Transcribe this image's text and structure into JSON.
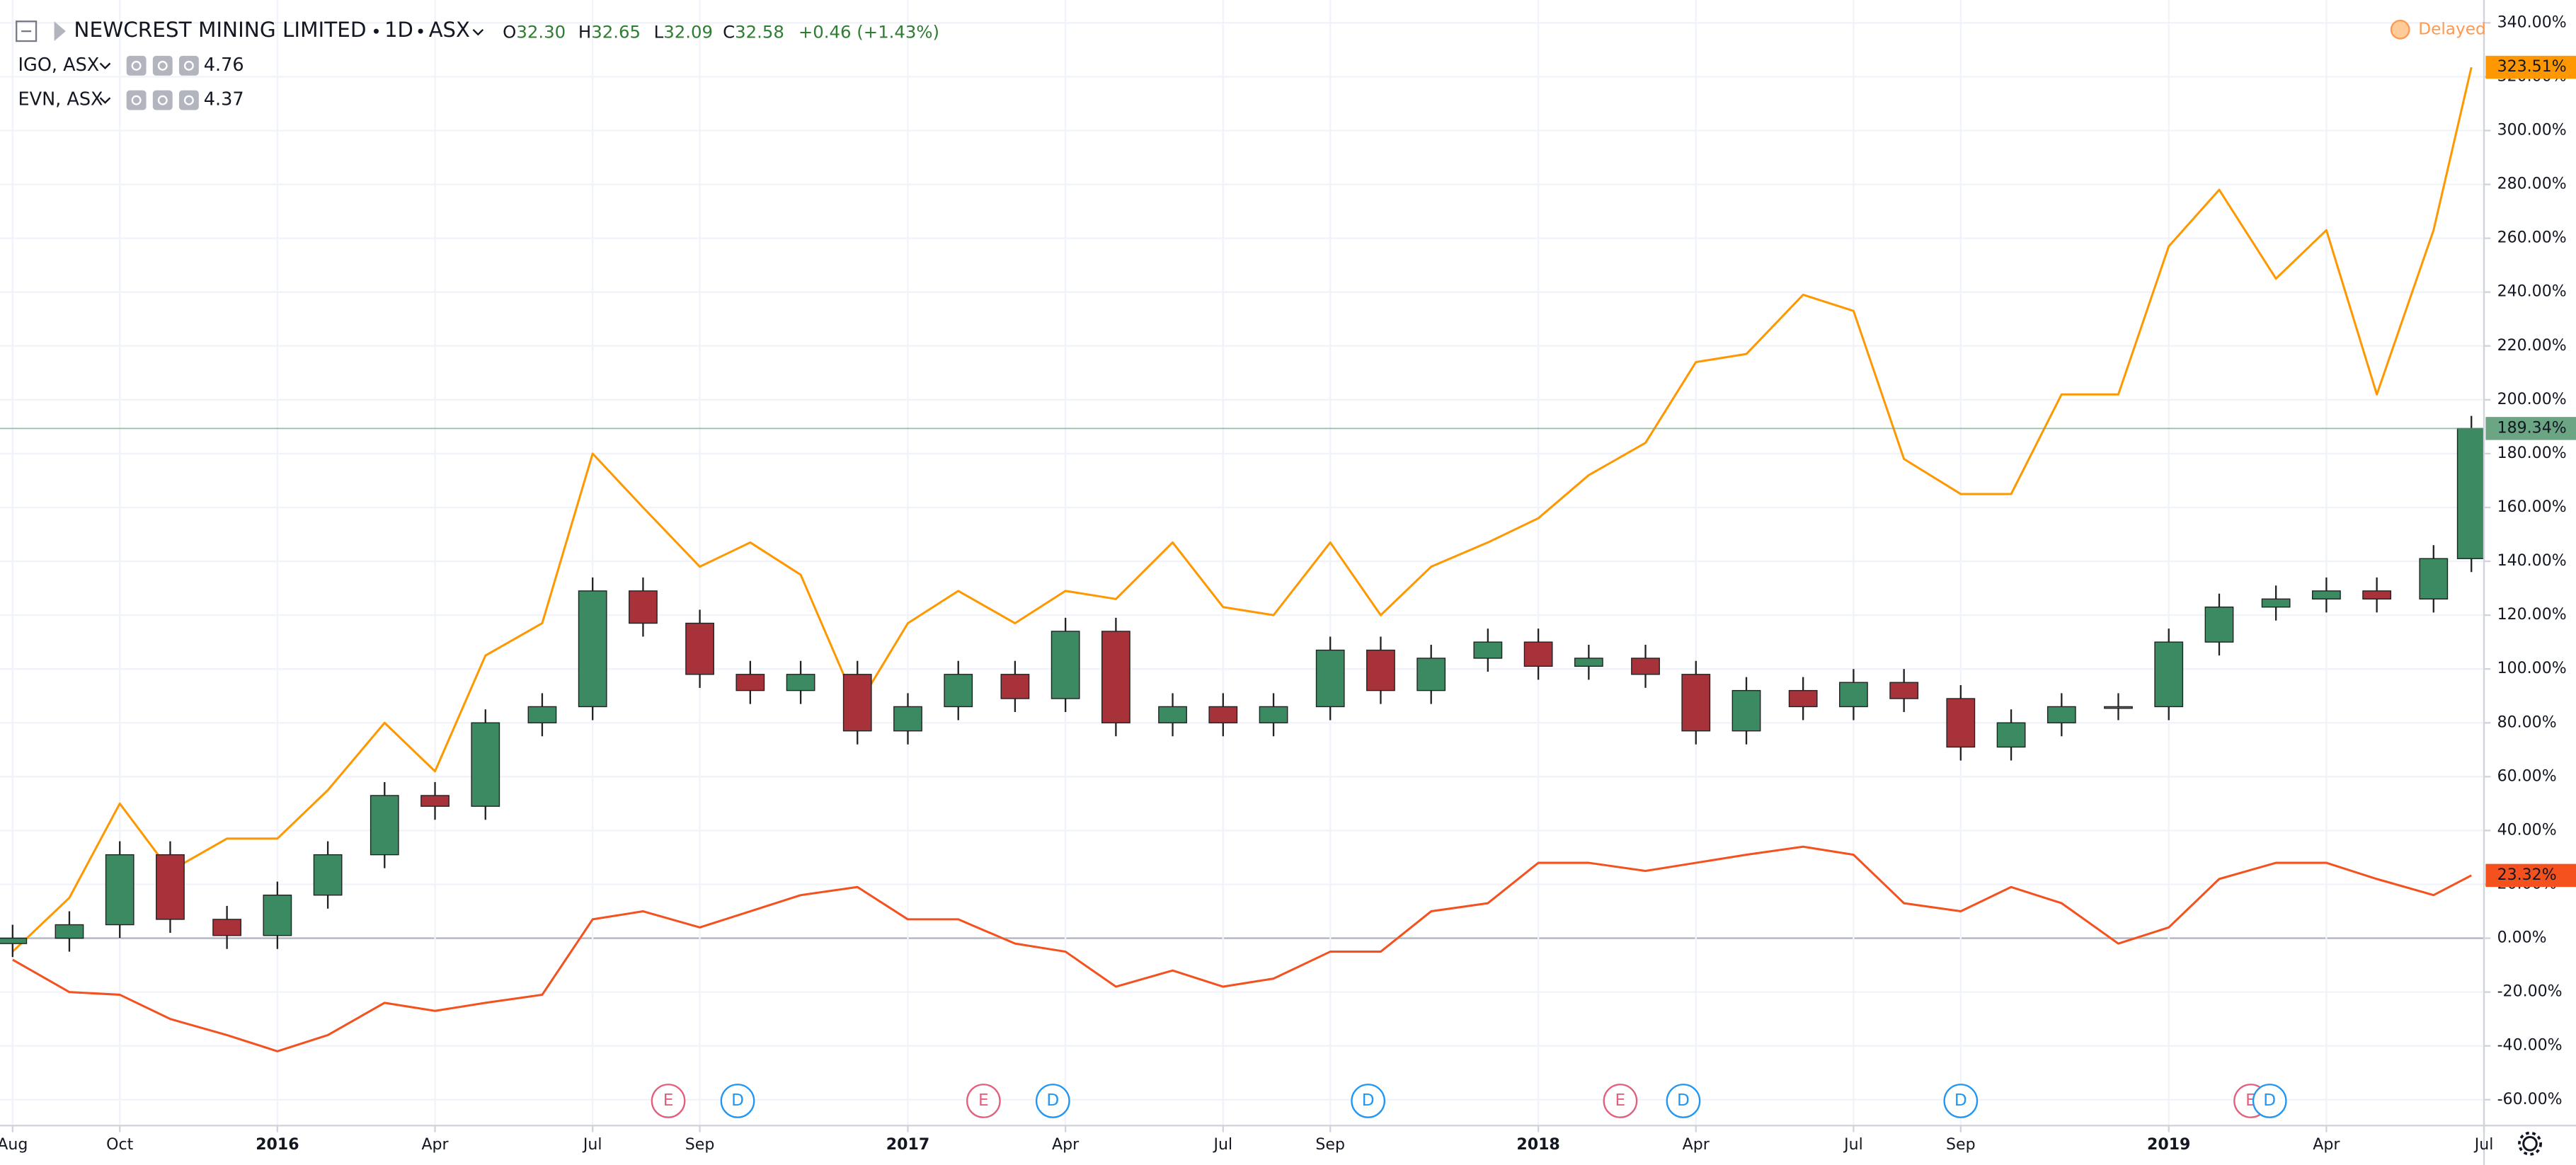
{
  "chart_data": {
    "type": "candlestick",
    "x": [
      2015.58,
      2015.67,
      2015.75,
      2015.83,
      2015.92,
      2016.0,
      2016.08,
      2016.17,
      2016.25,
      2016.33,
      2016.42,
      2016.5,
      2016.58,
      2016.67,
      2016.75,
      2016.83,
      2016.92,
      2017.0,
      2017.08,
      2017.17,
      2017.25,
      2017.33,
      2017.42,
      2017.5,
      2017.58,
      2017.67,
      2017.75,
      2017.83,
      2017.92,
      2018.0,
      2018.08,
      2018.17,
      2018.25,
      2018.33,
      2018.42,
      2018.5,
      2018.58,
      2018.67,
      2018.75,
      2018.83,
      2018.92,
      2019.0,
      2019.08,
      2019.17,
      2019.25,
      2019.33,
      2019.42,
      2019.48
    ],
    "xlim": [
      2015.56,
      2019.5
    ],
    "xticks": [
      {
        "value": 2015.58,
        "label": "Aug"
      },
      {
        "value": 2015.75,
        "label": "Oct"
      },
      2016,
      {
        "value": 2016.25,
        "label": "Apr"
      },
      {
        "value": 2016.5,
        "label": "Jul"
      },
      {
        "value": 2016.67,
        "label": "Sep"
      },
      2017,
      {
        "value": 2017.25,
        "label": "Apr"
      },
      {
        "value": 2017.5,
        "label": "Jul"
      },
      {
        "value": 2017.67,
        "label": "Sep"
      },
      2018,
      {
        "value": 2018.25,
        "label": "Apr"
      },
      {
        "value": 2018.5,
        "label": "Jul"
      },
      {
        "value": 2018.67,
        "label": "Sep"
      },
      2019,
      {
        "value": 2019.25,
        "label": "Apr"
      },
      {
        "value": 2019.5,
        "label": "Jul"
      }
    ],
    "ylim": [
      -69.6,
      348.5
    ],
    "yticks": [
      {
        "value": -60,
        "label": "-60.00%"
      },
      {
        "value": -40,
        "label": "-40.00%"
      },
      {
        "value": -20,
        "label": "-20.00%"
      },
      {
        "value": 0,
        "label": "0.00%"
      },
      {
        "value": 20,
        "label": "20.00%"
      },
      {
        "value": 40,
        "label": "40.00%"
      },
      {
        "value": 60,
        "label": "60.00%"
      },
      {
        "value": 80,
        "label": "80.00%"
      },
      {
        "value": 100,
        "label": "100.00%"
      },
      {
        "value": 120,
        "label": "120.00%"
      },
      {
        "value": 140,
        "label": "140.00%"
      },
      {
        "value": 160,
        "label": "160.00%"
      },
      {
        "value": 180,
        "label": "180.00%"
      },
      {
        "value": 200,
        "label": "200.00%"
      },
      {
        "value": 220,
        "label": "220.00%"
      },
      {
        "value": 240,
        "label": "240.00%"
      },
      {
        "value": 260,
        "label": "260.00%"
      },
      {
        "value": 280,
        "label": "280.00%"
      },
      {
        "value": 300,
        "label": "300.00%"
      },
      {
        "value": 320,
        "label": "320.00%"
      },
      {
        "value": 340,
        "label": "340.00%"
      }
    ],
    "grid": true,
    "series": [
      {
        "name": "NEWCREST MINING LIMITED",
        "type": "candlestick",
        "up_color": "#3b8a61",
        "down_color": "#a8323a",
        "open": [
          -2,
          0,
          5,
          31,
          7,
          1,
          16,
          31,
          53,
          49,
          80,
          86,
          129,
          117,
          98,
          92,
          98,
          77,
          86,
          98,
          89,
          114,
          80,
          86,
          80,
          86,
          107,
          92,
          104,
          110,
          101,
          104,
          98,
          77,
          92,
          86,
          95,
          89,
          71,
          80,
          86,
          86,
          110,
          123,
          126,
          129,
          126,
          141
        ],
        "high": [
          5,
          10,
          36,
          36,
          12,
          21,
          36,
          58,
          58,
          85,
          91,
          134,
          134,
          122,
          103,
          103,
          103,
          91,
          103,
          103,
          119,
          119,
          91,
          91,
          91,
          112,
          112,
          109,
          115,
          115,
          109,
          109,
          103,
          97,
          97,
          100,
          100,
          94,
          85,
          91,
          91,
          115,
          128,
          131,
          134,
          134,
          146,
          194
        ],
        "low": [
          -7,
          -5,
          0,
          2,
          -4,
          -4,
          11,
          26,
          44,
          44,
          75,
          81,
          112,
          93,
          87,
          87,
          72,
          72,
          81,
          84,
          84,
          75,
          75,
          75,
          75,
          81,
          87,
          87,
          99,
          96,
          96,
          93,
          72,
          72,
          81,
          81,
          84,
          66,
          66,
          75,
          81,
          81,
          105,
          118,
          121,
          121,
          121,
          136
        ],
        "close": [
          0,
          5,
          31,
          7,
          1,
          16,
          31,
          53,
          49,
          80,
          86,
          129,
          117,
          98,
          92,
          98,
          77,
          86,
          98,
          89,
          114,
          80,
          86,
          80,
          86,
          107,
          92,
          104,
          110,
          101,
          104,
          98,
          77,
          92,
          86,
          95,
          89,
          71,
          80,
          86,
          86,
          110,
          123,
          126,
          129,
          126,
          141,
          189.34
        ]
      },
      {
        "name": "IGO, ASX",
        "type": "line",
        "color": "#f4511e",
        "last_price": "4.76",
        "values": [
          -8,
          -20,
          -21,
          -30,
          -36,
          -42,
          -36,
          -24,
          -27,
          -24,
          -21,
          7,
          10,
          4,
          10,
          16,
          19,
          7,
          7,
          -2,
          -5,
          -18,
          -12,
          -18,
          -15,
          -5,
          -5,
          10,
          13,
          28,
          28,
          25,
          28,
          31,
          34,
          31,
          13,
          10,
          19,
          13,
          -2,
          4,
          22,
          28,
          28,
          22,
          16,
          23.32
        ]
      },
      {
        "name": "EVN, ASX",
        "type": "line",
        "color": "#ff9800",
        "last_price": "4.37",
        "values": [
          -5,
          15,
          50,
          25,
          37,
          37,
          55,
          80,
          62,
          105,
          117,
          180,
          160,
          138,
          147,
          135,
          86,
          117,
          129,
          117,
          129,
          126,
          147,
          123,
          120,
          147,
          120,
          138,
          147,
          156,
          172,
          184,
          214,
          217,
          239,
          233,
          178,
          165,
          165,
          202,
          202,
          257,
          278,
          245,
          263,
          202,
          263,
          323.51
        ]
      }
    ],
    "price_labels": [
      {
        "value": 323.51,
        "label": "323.51%",
        "color": "#ff9800"
      },
      {
        "value": 189.34,
        "label": "189.34%",
        "color": "#6ba583"
      },
      {
        "value": 23.32,
        "label": "23.32%",
        "color": "#f4511e"
      }
    ],
    "events": [
      {
        "x": 2016.62,
        "label": "E",
        "color": "#e35f7e"
      },
      {
        "x": 2016.73,
        "label": "D",
        "color": "#2196f3"
      },
      {
        "x": 2017.12,
        "label": "E",
        "color": "#e35f7e"
      },
      {
        "x": 2017.23,
        "label": "D",
        "color": "#2196f3"
      },
      {
        "x": 2017.73,
        "label": "D",
        "color": "#2196f3"
      },
      {
        "x": 2018.13,
        "label": "E",
        "color": "#e35f7e"
      },
      {
        "x": 2018.23,
        "label": "D",
        "color": "#2196f3"
      },
      {
        "x": 2018.67,
        "label": "D",
        "color": "#2196f3"
      },
      {
        "x": 2019.13,
        "label": "E",
        "color": "#e35f7e"
      },
      {
        "x": 2019.16,
        "label": "D",
        "color": "#2196f3"
      }
    ],
    "header": {
      "interval": "1D",
      "exchange": "ASX",
      "ohlc": [
        {
          "label": "O",
          "value": "32.30"
        },
        {
          "label": "H",
          "value": "32.65"
        },
        {
          "label": "L",
          "value": "32.09"
        },
        {
          "label": "C",
          "value": "32.58"
        }
      ],
      "change": "+0.46 (+1.43%)",
      "status": "Delayed",
      "value_color": "#2e7d32"
    }
  }
}
